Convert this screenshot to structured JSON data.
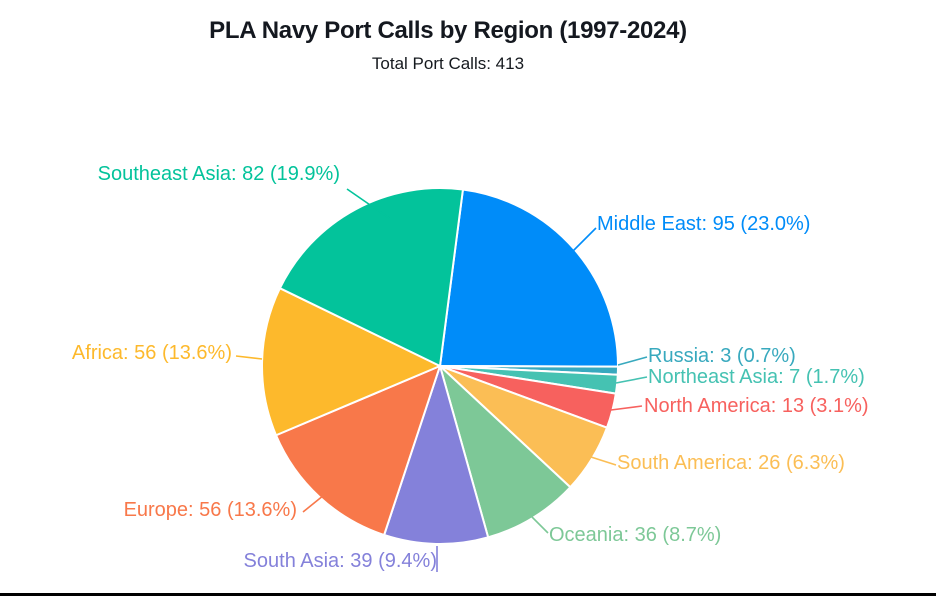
{
  "chart_data": {
    "type": "pie",
    "title": "PLA Navy Port Calls by Region (1997-2024)",
    "subtitle": "Total Port Calls: 413",
    "total": 413,
    "legend_position": "none",
    "labels_style": "outside-callout",
    "slices": [
      {
        "id": "middle_east",
        "label": "Middle East",
        "value": 95,
        "pct": "23.0",
        "color": "#008CF9"
      },
      {
        "id": "russia",
        "label": "Russia",
        "value": 3,
        "pct": "0.7",
        "color": "#38A9BE"
      },
      {
        "id": "northeast_asia",
        "label": "Northeast Asia",
        "value": 7,
        "pct": "1.7",
        "color": "#45C2B2"
      },
      {
        "id": "north_america",
        "label": "North America",
        "value": 13,
        "pct": "3.1",
        "color": "#F7615E"
      },
      {
        "id": "south_america",
        "label": "South America",
        "value": 26,
        "pct": "6.3",
        "color": "#FBBE55"
      },
      {
        "id": "oceania",
        "label": "Oceania",
        "value": 36,
        "pct": "8.7",
        "color": "#7DC897"
      },
      {
        "id": "south_asia",
        "label": "South Asia",
        "value": 39,
        "pct": "9.4",
        "color": "#8481DA"
      },
      {
        "id": "europe",
        "label": "Europe",
        "value": 56,
        "pct": "13.6",
        "color": "#F8784A"
      },
      {
        "id": "africa",
        "label": "Africa",
        "value": 56,
        "pct": "13.6",
        "color": "#FDB92C"
      },
      {
        "id": "southeast_asia",
        "label": "Southeast Asia",
        "value": 82,
        "pct": "19.9",
        "color": "#03C39B"
      }
    ]
  }
}
